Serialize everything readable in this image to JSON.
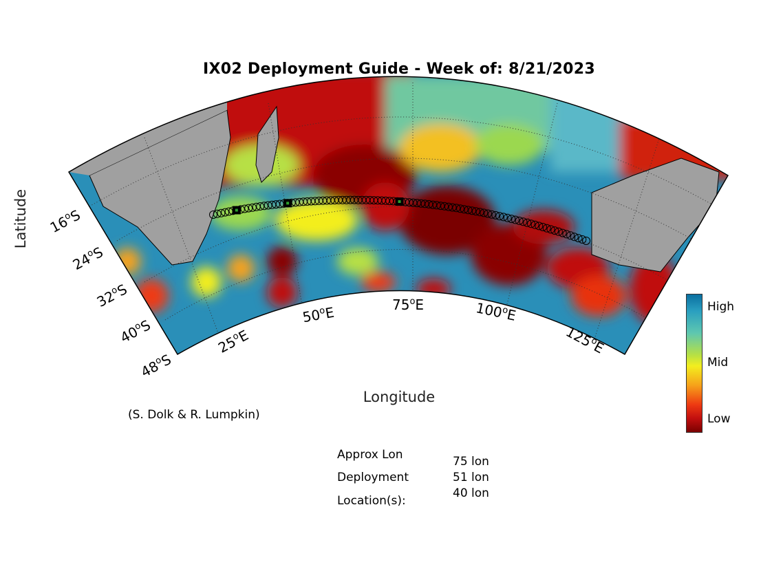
{
  "title": "IX02 Deployment Guide - Week of: 8/21/2023",
  "axes": {
    "xlabel": "Longitude",
    "ylabel": "Latitude",
    "lon_ticks": [
      "25°E",
      "50°E",
      "75°E",
      "100°E",
      "125°E"
    ],
    "lat_ticks": [
      "16°S",
      "24°S",
      "32°S",
      "40°S",
      "48°S"
    ]
  },
  "credit": "(S. Dolk & R. Lumpkin)",
  "colorbar": {
    "labels": [
      "High",
      "Mid",
      "Low"
    ],
    "colors": [
      "#0a6fa0",
      "#5ec7b0",
      "#f3ee1e",
      "#ee3a12",
      "#7a0000"
    ]
  },
  "deployment": {
    "label_lines": [
      "Approx Lon",
      "Deployment",
      "Location(s):"
    ],
    "values": [
      "75 lon",
      "51 lon",
      "40 lon"
    ]
  },
  "map": {
    "land_color": "#a0a0a0",
    "track_color": "#000000",
    "deployment_lons": [
      75,
      51,
      40
    ]
  }
}
